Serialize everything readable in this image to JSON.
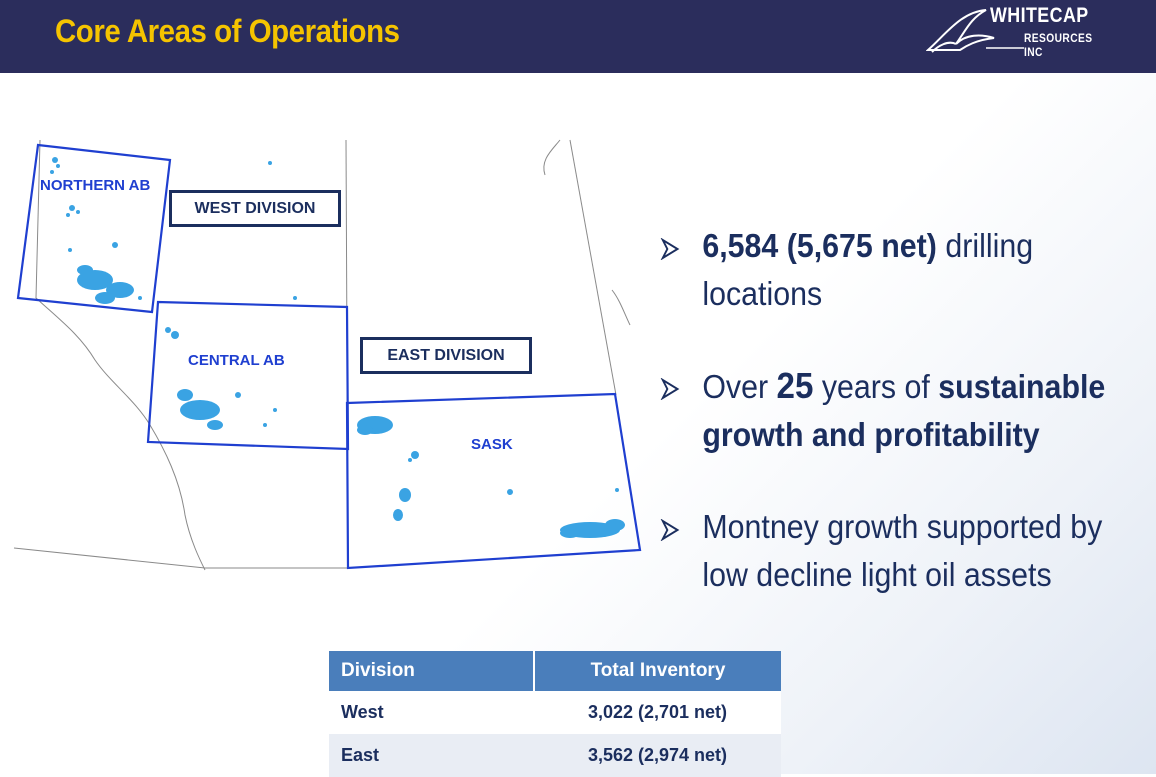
{
  "header": {
    "title": "Core Areas of Operations",
    "logo_line1": "WHITECAP",
    "logo_line2": "RESOURCES INC"
  },
  "map": {
    "regions": {
      "northern_ab": "NORTHERN AB",
      "central_ab": "CENTRAL AB",
      "sask": "SASK"
    },
    "divisions": {
      "west": "WEST DIVISION",
      "east": "EAST DIVISION"
    }
  },
  "bullets": [
    {
      "bold1": "6,584 (5,675 net)",
      "text1": " drilling locations"
    },
    {
      "text1": "Over ",
      "bold1": "25",
      "text2": " years of ",
      "bold2": "sustainable growth and profitability"
    },
    {
      "text1": "Montney growth supported by low decline light oil assets"
    }
  ],
  "table": {
    "headers": [
      "Division",
      "Total Inventory"
    ],
    "rows": [
      {
        "division": "West",
        "inventory": "3,022 (2,701 net)"
      },
      {
        "division": "East",
        "inventory": "3,562 (2,974 net)"
      }
    ]
  },
  "colors": {
    "header_bg": "#2b2d5c",
    "title": "#f5c400",
    "region_border": "#1f3fd0",
    "well_dots": "#3aa3e3",
    "table_header": "#4a7ebb",
    "text": "#1b2e5e"
  }
}
